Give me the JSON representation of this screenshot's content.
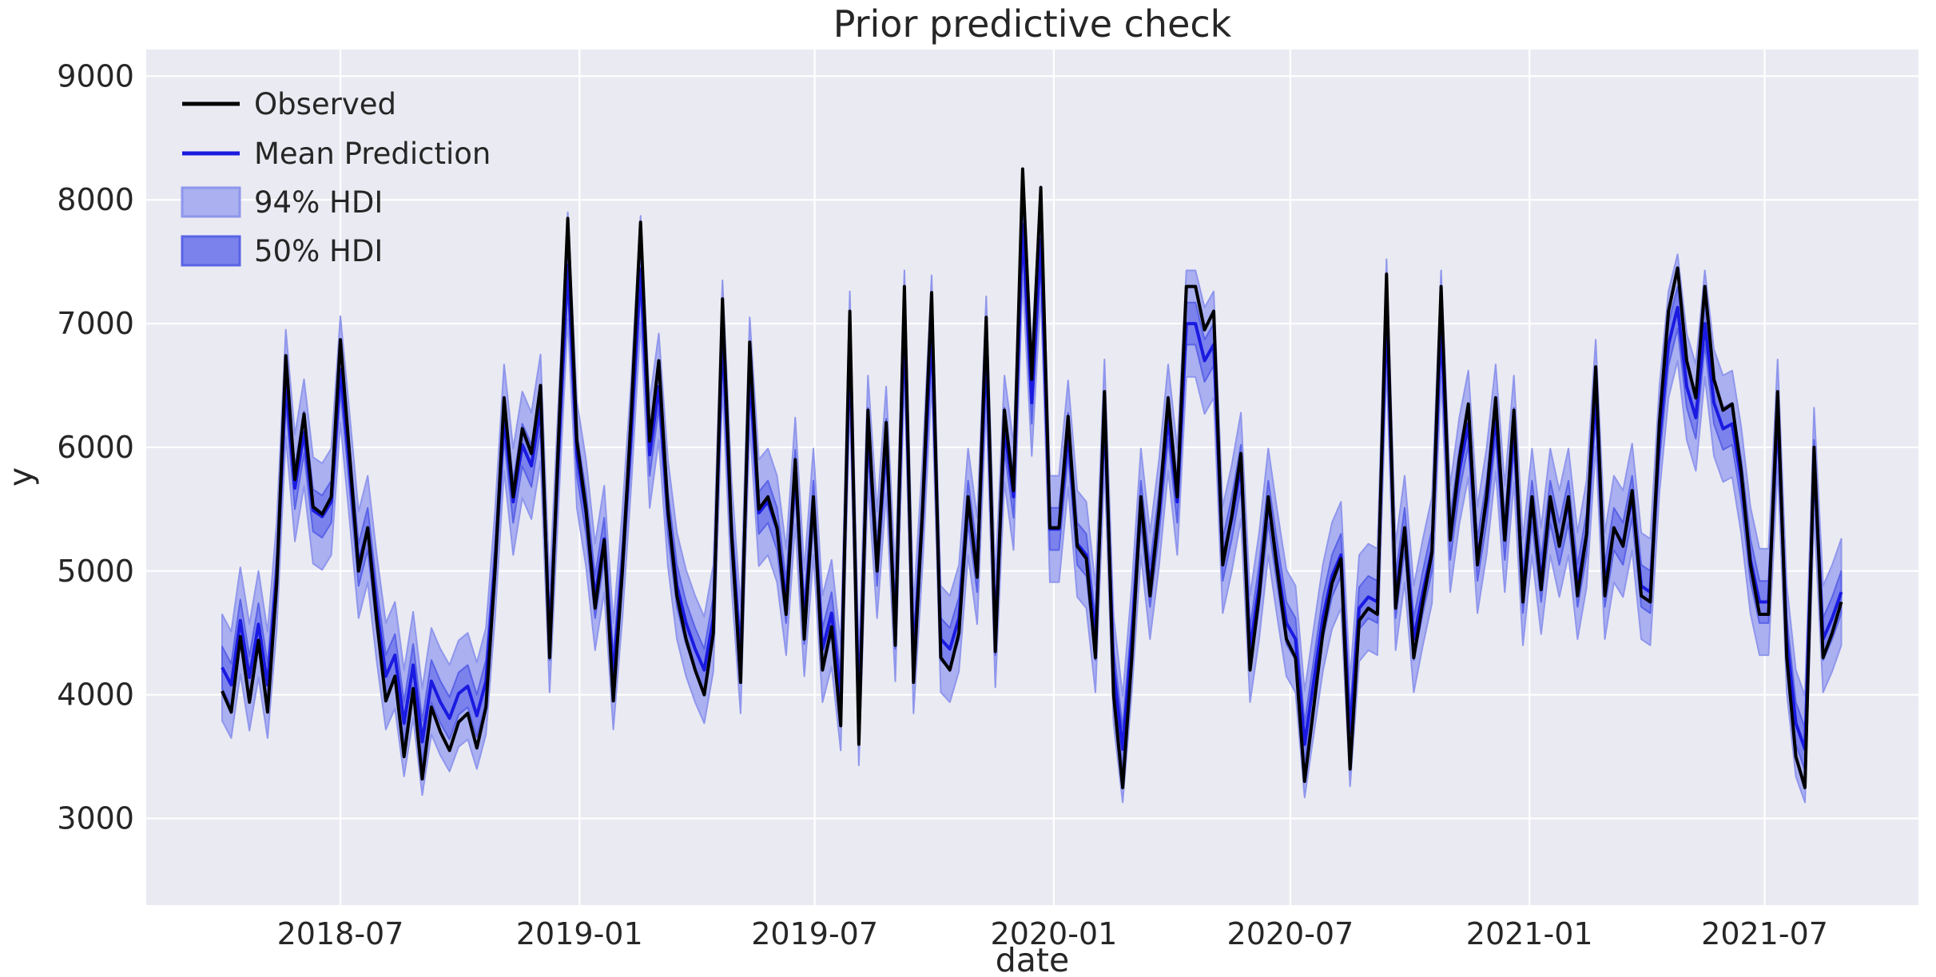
{
  "chart_data": {
    "type": "line",
    "title": "Prior predictive check",
    "xlabel": "date",
    "ylabel": "y",
    "legend": [
      {
        "label": "Observed",
        "kind": "line",
        "color": "#000000"
      },
      {
        "label": "Mean Prediction",
        "kind": "line",
        "color": "#1a1ae0"
      },
      {
        "label": "94% HDI",
        "kind": "band",
        "color": "#aab0f0",
        "edge": "#8f96ec"
      },
      {
        "label": "50% HDI",
        "kind": "band",
        "color": "#7b82ec",
        "edge": "#5a63e6"
      }
    ],
    "colors": {
      "figure_background": "#ffffff",
      "axes_background": "#eaeaf2",
      "grid": "#ffffff",
      "observed": "#000000",
      "mean": "#1a1ae0",
      "hdi94_fill": "#aab0f0",
      "hdi94_edge": "#8f96ec",
      "hdi50_fill": "#7b82ec",
      "hdi50_edge": "#5a63e6",
      "text": "#262626"
    },
    "x_start_date": "2018-04-01",
    "x_freq_days": 7,
    "n_points": 179,
    "ylim": [
      2300,
      9215
    ],
    "grid": true,
    "legend_position": "upper left",
    "yticks": [
      9000,
      8000,
      7000,
      6000,
      5000,
      4000,
      3000
    ],
    "xticks": [
      {
        "date": "2018-07-01",
        "label": "2018-07"
      },
      {
        "date": "2019-01-01",
        "label": "2019-01"
      },
      {
        "date": "2019-07-01",
        "label": "2019-07"
      },
      {
        "date": "2020-01-01",
        "label": "2020-01"
      },
      {
        "date": "2020-07-01",
        "label": "2020-07"
      },
      {
        "date": "2021-01-01",
        "label": "2021-01"
      },
      {
        "date": "2021-07-01",
        "label": "2021-07"
      }
    ],
    "hdi94_halfwidth": 430,
    "hdi50_halfwidth": 170,
    "series": {
      "observed": [
        4030,
        3860,
        4470,
        3940,
        4440,
        3860,
        4900,
        6740,
        5740,
        6270,
        5520,
        5460,
        5600,
        6870,
        5950,
        5000,
        5350,
        4600,
        3950,
        4150,
        3500,
        4050,
        3320,
        3900,
        3700,
        3550,
        3780,
        3850,
        3570,
        3900,
        5000,
        6400,
        5600,
        6150,
        5950,
        6500,
        4300,
        6100,
        7850,
        6050,
        5500,
        4700,
        5250,
        3950,
        5000,
        6300,
        7820,
        6050,
        6700,
        5500,
        4800,
        4450,
        4200,
        4000,
        4500,
        7200,
        5300,
        4100,
        6850,
        5500,
        5600,
        5350,
        4650,
        5900,
        4450,
        5600,
        4200,
        4550,
        3750,
        7100,
        3600,
        6300,
        5000,
        6200,
        4400,
        7300,
        4100,
        5500,
        7250,
        4300,
        4200,
        4500,
        5600,
        4950,
        7050,
        4350,
        6300,
        5650,
        8250,
        6550,
        8100,
        5350,
        5350,
        6250,
        5200,
        5100,
        4300,
        6450,
        4000,
        3250,
        4300,
        5600,
        4800,
        5500,
        6400,
        5600,
        7300,
        7300,
        6950,
        7100,
        5050,
        5450,
        5950,
        4200,
        4800,
        5600,
        5000,
        4450,
        4300,
        3300,
        3900,
        4500,
        4900,
        5100,
        3400,
        4600,
        4700,
        4650,
        7400,
        4700,
        5350,
        4300,
        4750,
        5150,
        7300,
        5250,
        5900,
        6350,
        5050,
        5600,
        6400,
        5250,
        6300,
        4750,
        5600,
        4850,
        5600,
        5200,
        5600,
        4800,
        5300,
        6650,
        4800,
        5350,
        5200,
        5650,
        4800,
        4750,
        6200,
        7100,
        7450,
        6700,
        6400,
        7300,
        6550,
        6300,
        6350,
        5800,
        5050,
        4650,
        4650,
        6450,
        4300,
        3500,
        3250,
        6000,
        4300,
        4500,
        4750
      ],
      "mean": [
        4220,
        4080,
        4600,
        4140,
        4570,
        4080,
        4960,
        6520,
        5670,
        6120,
        5490,
        5440,
        5560,
        6630,
        5850,
        5050,
        5340,
        4700,
        4150,
        4320,
        3770,
        4240,
        3620,
        4110,
        3940,
        3810,
        4010,
        4070,
        3830,
        4110,
        5050,
        6240,
        5560,
        6020,
        5850,
        6320,
        4450,
        5980,
        7470,
        5940,
        5470,
        4790,
        5260,
        4150,
        5050,
        6150,
        7440,
        5940,
        6490,
        5470,
        4880,
        4580,
        4370,
        4200,
        4620,
        6920,
        5300,
        4280,
        6620,
        5470,
        5560,
        5340,
        4750,
        5810,
        4580,
        5560,
        4370,
        4660,
        3980,
        6830,
        3860,
        6150,
        5050,
        6060,
        4540,
        7000,
        4280,
        5470,
        6960,
        4450,
        4370,
        4620,
        5560,
        5000,
        6790,
        4490,
        6150,
        5600,
        7800,
        6360,
        7680,
        5340,
        5340,
        6110,
        5220,
        5130,
        4450,
        6280,
        4200,
        3560,
        4450,
        5560,
        4880,
        5470,
        6240,
        5560,
        7000,
        7000,
        6700,
        6830,
        5090,
        5430,
        5850,
        4370,
        4880,
        5560,
        5050,
        4580,
        4450,
        3600,
        4110,
        4620,
        4960,
        5130,
        3690,
        4700,
        4790,
        4750,
        7090,
        4790,
        5340,
        4450,
        4830,
        5170,
        7000,
        5260,
        5810,
        6190,
        5090,
        5560,
        6240,
        5260,
        6150,
        4830,
        5560,
        4920,
        5560,
        5220,
        5560,
        4880,
        5300,
        6440,
        4880,
        5340,
        5220,
        5600,
        4880,
        4830,
        6060,
        6830,
        7130,
        6490,
        6240,
        7000,
        6360,
        6150,
        6190,
        5730,
        5090,
        4750,
        4750,
        6280,
        4450,
        3770,
        3560,
        5890,
        4450,
        4620,
        4830
      ]
    }
  }
}
